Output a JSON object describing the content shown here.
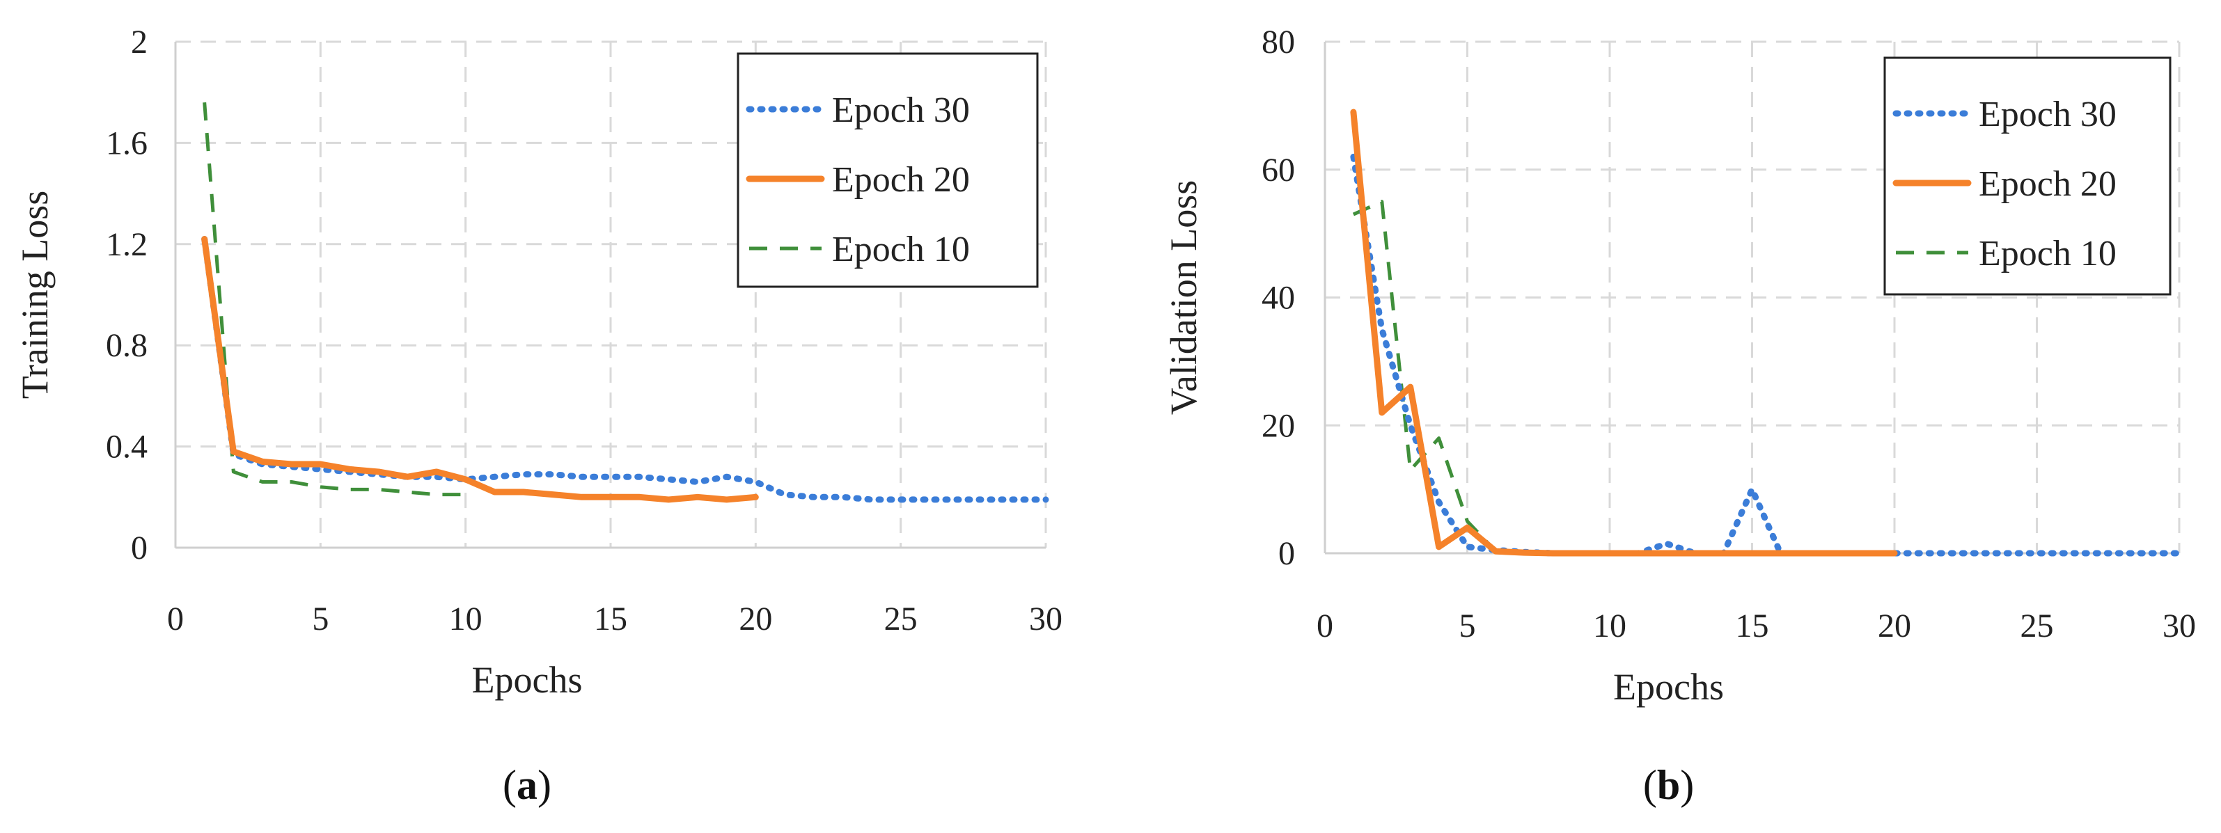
{
  "colors": {
    "epoch30": "#3b7dd8",
    "epoch20": "#f5822a",
    "epoch10": "#3f8f3a",
    "grid": "#d9d9d9",
    "axis": "#222222"
  },
  "chart_data": [
    {
      "id": "a",
      "type": "line",
      "panel_label": {
        "open": "(",
        "letter": "a",
        "close": ")"
      },
      "xlabel": "Epochs",
      "ylabel": "Training Loss",
      "xlim": [
        0,
        30
      ],
      "ylim": [
        0,
        2
      ],
      "xticks": [
        0,
        5,
        10,
        15,
        20,
        25,
        30
      ],
      "yticks": [
        0,
        0.4,
        0.8,
        1.2,
        1.6,
        2
      ],
      "ytick_labels": [
        "0",
        "0.4",
        "0.8",
        "1.2",
        "1.6",
        "2"
      ],
      "grid": true,
      "legend_position": "top-right",
      "series": [
        {
          "name": "Epoch 30",
          "style": "dotted",
          "color_key": "epoch30",
          "x": [
            1,
            2,
            3,
            4,
            5,
            6,
            7,
            8,
            9,
            10,
            11,
            12,
            13,
            14,
            15,
            16,
            17,
            18,
            19,
            20,
            21,
            22,
            23,
            24,
            25,
            26,
            27,
            28,
            29,
            30
          ],
          "y": [
            1.22,
            0.37,
            0.33,
            0.32,
            0.31,
            0.3,
            0.29,
            0.28,
            0.28,
            0.27,
            0.28,
            0.29,
            0.29,
            0.28,
            0.28,
            0.28,
            0.27,
            0.26,
            0.28,
            0.26,
            0.21,
            0.2,
            0.2,
            0.19,
            0.19,
            0.19,
            0.19,
            0.19,
            0.19,
            0.19
          ]
        },
        {
          "name": "Epoch 20",
          "style": "solid",
          "color_key": "epoch20",
          "x": [
            1,
            2,
            3,
            4,
            5,
            6,
            7,
            8,
            9,
            10,
            11,
            12,
            13,
            14,
            15,
            16,
            17,
            18,
            19,
            20
          ],
          "y": [
            1.22,
            0.38,
            0.34,
            0.33,
            0.33,
            0.31,
            0.3,
            0.28,
            0.3,
            0.27,
            0.22,
            0.22,
            0.21,
            0.2,
            0.2,
            0.2,
            0.19,
            0.2,
            0.19,
            0.2
          ]
        },
        {
          "name": "Epoch 10",
          "style": "dashed",
          "color_key": "epoch10",
          "x": [
            1,
            2,
            3,
            4,
            5,
            6,
            7,
            8,
            9,
            10
          ],
          "y": [
            1.76,
            0.3,
            0.26,
            0.26,
            0.24,
            0.23,
            0.23,
            0.22,
            0.21,
            0.21
          ]
        }
      ]
    },
    {
      "id": "b",
      "type": "line",
      "panel_label": {
        "open": "(",
        "letter": "b",
        "close": ")"
      },
      "xlabel": "Epochs",
      "ylabel": "Validation Loss",
      "xlim": [
        0,
        30
      ],
      "ylim": [
        0,
        80
      ],
      "xticks": [
        0,
        5,
        10,
        15,
        20,
        25,
        30
      ],
      "yticks": [
        0,
        20,
        40,
        60,
        80
      ],
      "ytick_labels": [
        "0",
        "20",
        "40",
        "60",
        "80"
      ],
      "grid": true,
      "legend_position": "top-right",
      "series": [
        {
          "name": "Epoch 30",
          "style": "dotted",
          "color_key": "epoch30",
          "x": [
            1,
            2,
            3,
            4,
            5,
            6,
            7,
            8,
            9,
            10,
            11,
            12,
            13,
            14,
            15,
            16,
            17,
            18,
            19,
            20,
            21,
            22,
            23,
            24,
            25,
            26,
            27,
            28,
            29,
            30
          ],
          "y": [
            62,
            35,
            20,
            8,
            1,
            0.5,
            0.2,
            0,
            0,
            0,
            0,
            1.5,
            0,
            0,
            10,
            0,
            0,
            0,
            0,
            0,
            0,
            0,
            0,
            0,
            0,
            0,
            0,
            0,
            0,
            0
          ]
        },
        {
          "name": "Epoch 20",
          "style": "solid",
          "color_key": "epoch20",
          "x": [
            1,
            2,
            3,
            4,
            5,
            6,
            7,
            8,
            9,
            10,
            11,
            12,
            13,
            14,
            15,
            16,
            17,
            18,
            19,
            20
          ],
          "y": [
            69,
            22,
            26,
            1,
            4,
            0.3,
            0.1,
            0,
            0,
            0,
            0,
            0,
            0,
            0,
            0,
            0,
            0,
            0,
            0,
            0
          ]
        },
        {
          "name": "Epoch 10",
          "style": "dashed",
          "color_key": "epoch10",
          "x": [
            1,
            2,
            3,
            4,
            5,
            6,
            7,
            8,
            9,
            10
          ],
          "y": [
            53,
            55,
            13,
            18,
            5,
            0.3,
            0,
            0,
            0,
            0
          ]
        }
      ]
    }
  ]
}
